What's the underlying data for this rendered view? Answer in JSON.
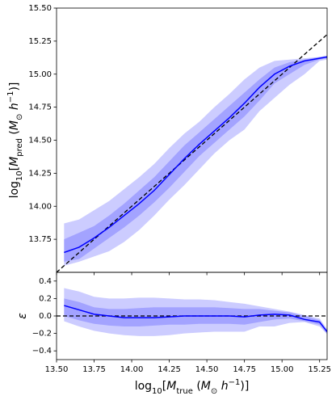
{
  "chart_data": [
    {
      "type": "band-line",
      "ylabel": [
        {
          "text": "log"
        },
        {
          "text": "10",
          "sub": true
        },
        {
          "text": "["
        },
        {
          "text": "M",
          "italic": true
        },
        {
          "text": "pred",
          "sub": true
        },
        {
          "text": " ("
        },
        {
          "text": "M",
          "italic": true
        },
        {
          "text": "⊙",
          "sub": true
        },
        {
          "text": " "
        },
        {
          "text": "h",
          "italic": true
        },
        {
          "text": "−1",
          "sup": true
        },
        {
          "text": ")]"
        }
      ],
      "x": [
        13.55,
        13.65,
        13.75,
        13.85,
        13.95,
        14.05,
        14.15,
        14.25,
        14.35,
        14.45,
        14.55,
        14.65,
        14.75,
        14.85,
        14.95,
        15.05,
        15.15,
        15.25,
        15.3
      ],
      "median": {
        "color": "#0000ff",
        "values": [
          13.65,
          13.69,
          13.76,
          13.84,
          13.93,
          14.02,
          14.12,
          14.24,
          14.36,
          14.47,
          14.57,
          14.67,
          14.78,
          14.9,
          15.0,
          15.06,
          15.1,
          15.12,
          15.13
        ]
      },
      "inner_band": {
        "color": "#0000ff",
        "alpha": 0.2,
        "upper": [
          13.75,
          13.8,
          13.85,
          13.93,
          14.02,
          14.12,
          14.22,
          14.34,
          14.46,
          14.56,
          14.66,
          14.76,
          14.86,
          14.96,
          15.05,
          15.09,
          15.11,
          15.13,
          15.14
        ],
        "lower": [
          13.58,
          13.6,
          13.68,
          13.76,
          13.84,
          13.93,
          14.03,
          14.14,
          14.26,
          14.38,
          14.48,
          14.58,
          14.68,
          14.8,
          14.93,
          15.0,
          15.07,
          15.11,
          15.12
        ]
      },
      "outer_band": {
        "color": "#0000ff",
        "alpha": 0.2,
        "upper": [
          13.87,
          13.9,
          13.97,
          14.04,
          14.13,
          14.22,
          14.32,
          14.44,
          14.55,
          14.64,
          14.75,
          14.85,
          14.96,
          15.05,
          15.1,
          15.11,
          15.12,
          15.13,
          15.14
        ],
        "lower": [
          13.55,
          13.58,
          13.62,
          13.66,
          13.73,
          13.82,
          13.93,
          14.05,
          14.16,
          14.28,
          14.4,
          14.5,
          14.58,
          14.72,
          14.82,
          14.92,
          15.0,
          15.1,
          15.11
        ]
      },
      "identity_line": true,
      "xlim": [
        13.5,
        15.3
      ],
      "ylim": [
        13.5,
        15.5
      ],
      "yticks": [
        13.75,
        {
          "value": 14,
          "label": "14.00"
        },
        14.25,
        {
          "value": 14.5,
          "label": "14.50"
        },
        14.75,
        {
          "value": 15,
          "label": "15.00"
        },
        15.25,
        {
          "value": 15.5,
          "label": "15.50"
        }
      ]
    },
    {
      "type": "band-line",
      "ylabel": [
        {
          "text": "ε",
          "italic": true
        }
      ],
      "xlabel": [
        {
          "text": "log"
        },
        {
          "text": "10",
          "sub": true
        },
        {
          "text": "["
        },
        {
          "text": "M",
          "italic": true
        },
        {
          "text": "true",
          "sub": true
        },
        {
          "text": " ("
        },
        {
          "text": "M",
          "italic": true
        },
        {
          "text": "⊙",
          "sub": true
        },
        {
          "text": " "
        },
        {
          "text": "h",
          "italic": true
        },
        {
          "text": "−1",
          "sup": true
        },
        {
          "text": ")]"
        }
      ],
      "x": [
        13.55,
        13.65,
        13.75,
        13.85,
        13.95,
        14.05,
        14.15,
        14.25,
        14.35,
        14.45,
        14.55,
        14.65,
        14.75,
        14.85,
        14.95,
        15.05,
        15.15,
        15.25,
        15.3
      ],
      "median": {
        "color": "#0000ff",
        "values": [
          0.12,
          0.07,
          0.02,
          0.0,
          -0.02,
          -0.02,
          -0.02,
          -0.01,
          0,
          0,
          0,
          0,
          -0.01,
          0.01,
          0.02,
          0.01,
          -0.04,
          -0.07,
          -0.18
        ]
      },
      "inner_band": {
        "color": "#0000ff",
        "alpha": 0.2,
        "upper": [
          0.2,
          0.16,
          0.1,
          0.08,
          0.08,
          0.09,
          0.1,
          0.1,
          0.1,
          0.1,
          0.1,
          0.09,
          0.08,
          0.08,
          0.06,
          0.04,
          0.0,
          -0.05,
          -0.17
        ],
        "lower": [
          0.0,
          -0.05,
          -0.09,
          -0.11,
          -0.12,
          -0.12,
          -0.11,
          -0.1,
          -0.1,
          -0.09,
          -0.09,
          -0.09,
          -0.1,
          -0.07,
          -0.04,
          -0.03,
          -0.06,
          -0.1,
          -0.2
        ]
      },
      "outer_band": {
        "color": "#0000ff",
        "alpha": 0.2,
        "upper": [
          0.32,
          0.28,
          0.22,
          0.2,
          0.2,
          0.21,
          0.21,
          0.2,
          0.19,
          0.19,
          0.18,
          0.16,
          0.14,
          0.11,
          0.08,
          0.05,
          0.01,
          -0.03,
          -0.15
        ],
        "lower": [
          -0.06,
          -0.12,
          -0.17,
          -0.2,
          -0.22,
          -0.23,
          -0.23,
          -0.22,
          -0.2,
          -0.19,
          -0.18,
          -0.18,
          -0.18,
          -0.12,
          -0.12,
          -0.08,
          -0.07,
          -0.12,
          -0.21
        ]
      },
      "hline": 0,
      "xlim": [
        13.5,
        15.3
      ],
      "xticks": [
        {
          "value": 13.5,
          "label": "13.50"
        },
        13.75,
        {
          "value": 14,
          "label": "14.00"
        },
        14.25,
        {
          "value": 14.5,
          "label": "14.50"
        },
        14.75,
        {
          "value": 15,
          "label": "15.00"
        },
        15.25
      ],
      "ylim": [
        -0.5,
        0.5
      ],
      "yticks": [
        {
          "value": -0.4,
          "label": "−0.4"
        },
        {
          "value": -0.2,
          "label": "−0.2"
        },
        {
          "value": 0,
          "label": "0.0"
        },
        0.2,
        0.4
      ]
    }
  ]
}
